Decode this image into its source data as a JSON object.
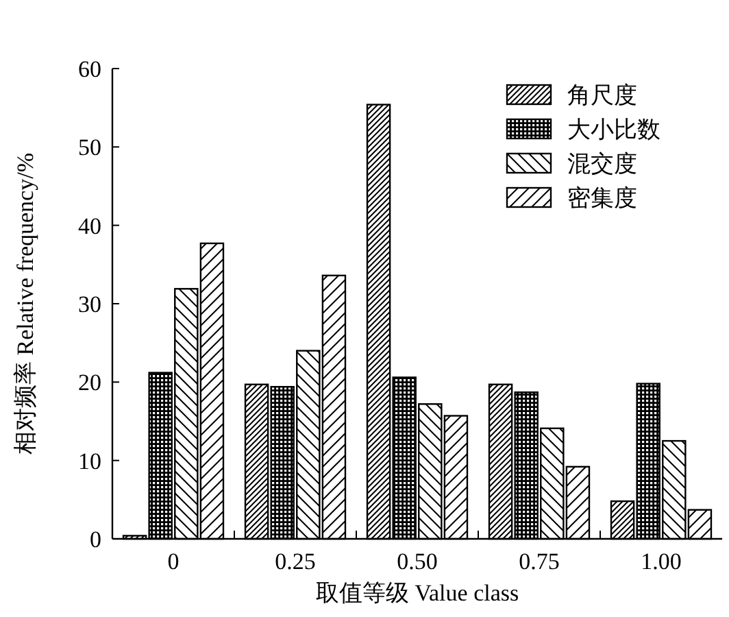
{
  "chart_data": {
    "type": "bar",
    "xlabel": "取值等级 Value class",
    "ylabel": "相对频率 Relative frequency/%",
    "categories": [
      "0",
      "0.25",
      "0.50",
      "0.75",
      "1.00"
    ],
    "series": [
      {
        "name": "角尺度",
        "color": "#000000",
        "values": [
          0.4,
          19.7,
          55.4,
          19.7,
          4.8
        ]
      },
      {
        "name": "大小比数",
        "color": "#000000",
        "values": [
          21.2,
          19.4,
          20.6,
          18.7,
          19.8
        ]
      },
      {
        "name": "混交度",
        "color": "#000000",
        "values": [
          31.9,
          24.0,
          17.2,
          14.1,
          12.5
        ]
      },
      {
        "name": "密集度",
        "color": "#000000",
        "values": [
          37.7,
          33.6,
          15.7,
          9.2,
          3.7
        ]
      }
    ],
    "ylim": [
      0,
      60
    ],
    "yticks": [
      0,
      10,
      20,
      30,
      40,
      50,
      60
    ],
    "grid": false,
    "legend": "top right"
  }
}
